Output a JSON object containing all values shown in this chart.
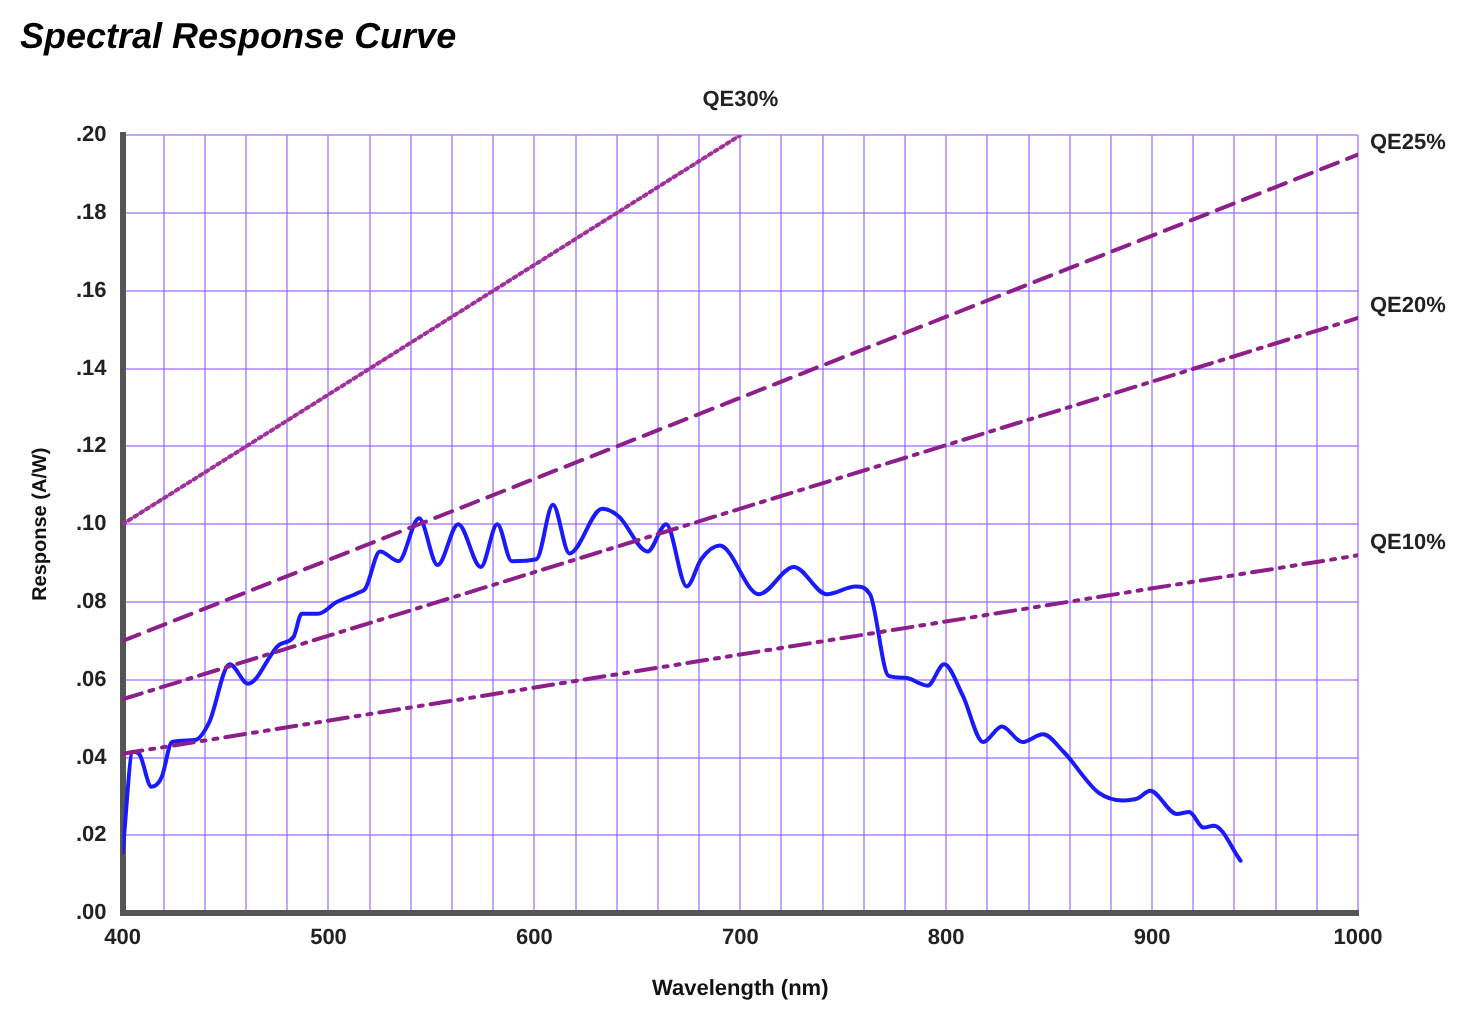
{
  "chart_data": {
    "type": "line",
    "title": "Spectral Response Curve",
    "xlabel": "Wavelength (nm)",
    "ylabel": "Response (A/W)",
    "xlim": [
      400,
      1000
    ],
    "xticks": [
      400,
      {
        "value": 420,
        "label": null
      },
      {
        "value": 440,
        "label": null
      },
      {
        "value": 460,
        "label": null
      },
      {
        "value": 480,
        "label": null
      },
      500,
      {
        "value": 520,
        "label": null
      },
      {
        "value": 540,
        "label": null
      },
      {
        "value": 560,
        "label": null
      },
      {
        "value": 580,
        "label": null
      },
      600,
      {
        "value": 620,
        "label": null
      },
      {
        "value": 640,
        "label": null
      },
      {
        "value": 660,
        "label": null
      },
      {
        "value": 680,
        "label": null
      },
      700,
      {
        "value": 720,
        "label": null
      },
      {
        "value": 740,
        "label": null
      },
      {
        "value": 760,
        "label": null
      },
      {
        "value": 780,
        "label": null
      },
      800,
      {
        "value": 820,
        "label": null
      },
      {
        "value": 840,
        "label": null
      },
      {
        "value": 860,
        "label": null
      },
      {
        "value": 880,
        "label": null
      },
      900,
      {
        "value": 920,
        "label": null
      },
      {
        "value": 940,
        "label": null
      },
      {
        "value": 960,
        "label": null
      },
      {
        "value": 980,
        "label": null
      },
      1000
    ],
    "ylim": [
      0,
      0.2
    ],
    "yticks": [
      {
        "value": 0,
        "label": ".00"
      },
      {
        "value": 0.02,
        "label": ".02"
      },
      {
        "value": 0.04,
        "label": ".04"
      },
      {
        "value": 0.06,
        "label": ".06"
      },
      {
        "value": 0.08,
        "label": ".08"
      },
      {
        "value": 0.1,
        "label": ".10"
      },
      {
        "value": 0.12,
        "label": ".12"
      },
      {
        "value": 0.14,
        "label": ".14"
      },
      {
        "value": 0.16,
        "label": ".16"
      },
      {
        "value": 0.18,
        "label": ".18"
      },
      {
        "value": 0.2,
        "label": ".20"
      }
    ],
    "grid": true,
    "legend": false,
    "marker": "none",
    "series": [
      {
        "name": "QE30%",
        "color": "#a0309a",
        "line_style": "dotted",
        "x": [
          400,
          700
        ],
        "values": [
          0.1,
          0.2
        ]
      },
      {
        "name": "QE25%",
        "color": "#8e1f8a",
        "line_style": "dashed",
        "x": [
          400,
          1000
        ],
        "values": [
          0.07,
          0.195
        ]
      },
      {
        "name": "QE20%",
        "color": "#8e1f8a",
        "line_style": "dashdot",
        "x": [
          400,
          1000
        ],
        "values": [
          0.055,
          0.153
        ]
      },
      {
        "name": "QE10%",
        "color": "#8e1f8a",
        "line_style": "dashdotdot",
        "x": [
          400,
          1000
        ],
        "values": [
          0.041,
          0.092
        ]
      },
      {
        "color": "#1a1aff",
        "line_style": "solid",
        "x": [
          400,
          405,
          408,
          414,
          419,
          424,
          435,
          442,
          452,
          461,
          476,
          483,
          487,
          495,
          504,
          515,
          518,
          525,
          534,
          544,
          553,
          563,
          574,
          582,
          589,
          601,
          609,
          617,
          633,
          641,
          655,
          664,
          674,
          681,
          690,
          709,
          726,
          742,
          756,
          763,
          772,
          780,
          791,
          799,
          808,
          818,
          827,
          837,
          847,
          857,
          874,
          886,
          893,
          899,
          912,
          918,
          925,
          930,
          943
        ],
        "values": [
          0.0155,
          0.0415,
          0.041,
          0.0325,
          0.035,
          0.044,
          0.0445,
          0.049,
          0.064,
          0.059,
          0.069,
          0.071,
          0.077,
          0.077,
          0.08,
          0.0825,
          0.0835,
          0.093,
          0.0905,
          0.1015,
          0.0895,
          0.1,
          0.089,
          0.1,
          0.0905,
          0.091,
          0.105,
          0.0925,
          0.104,
          0.102,
          0.093,
          0.1,
          0.084,
          0.091,
          0.0945,
          0.082,
          0.089,
          0.082,
          0.084,
          0.082,
          0.061,
          0.0605,
          0.0585,
          0.064,
          0.056,
          0.044,
          0.048,
          0.044,
          0.046,
          0.0415,
          0.031,
          0.029,
          0.0295,
          0.0315,
          0.0255,
          0.026,
          0.022,
          0.0225,
          0.0135
        ]
      }
    ]
  }
}
